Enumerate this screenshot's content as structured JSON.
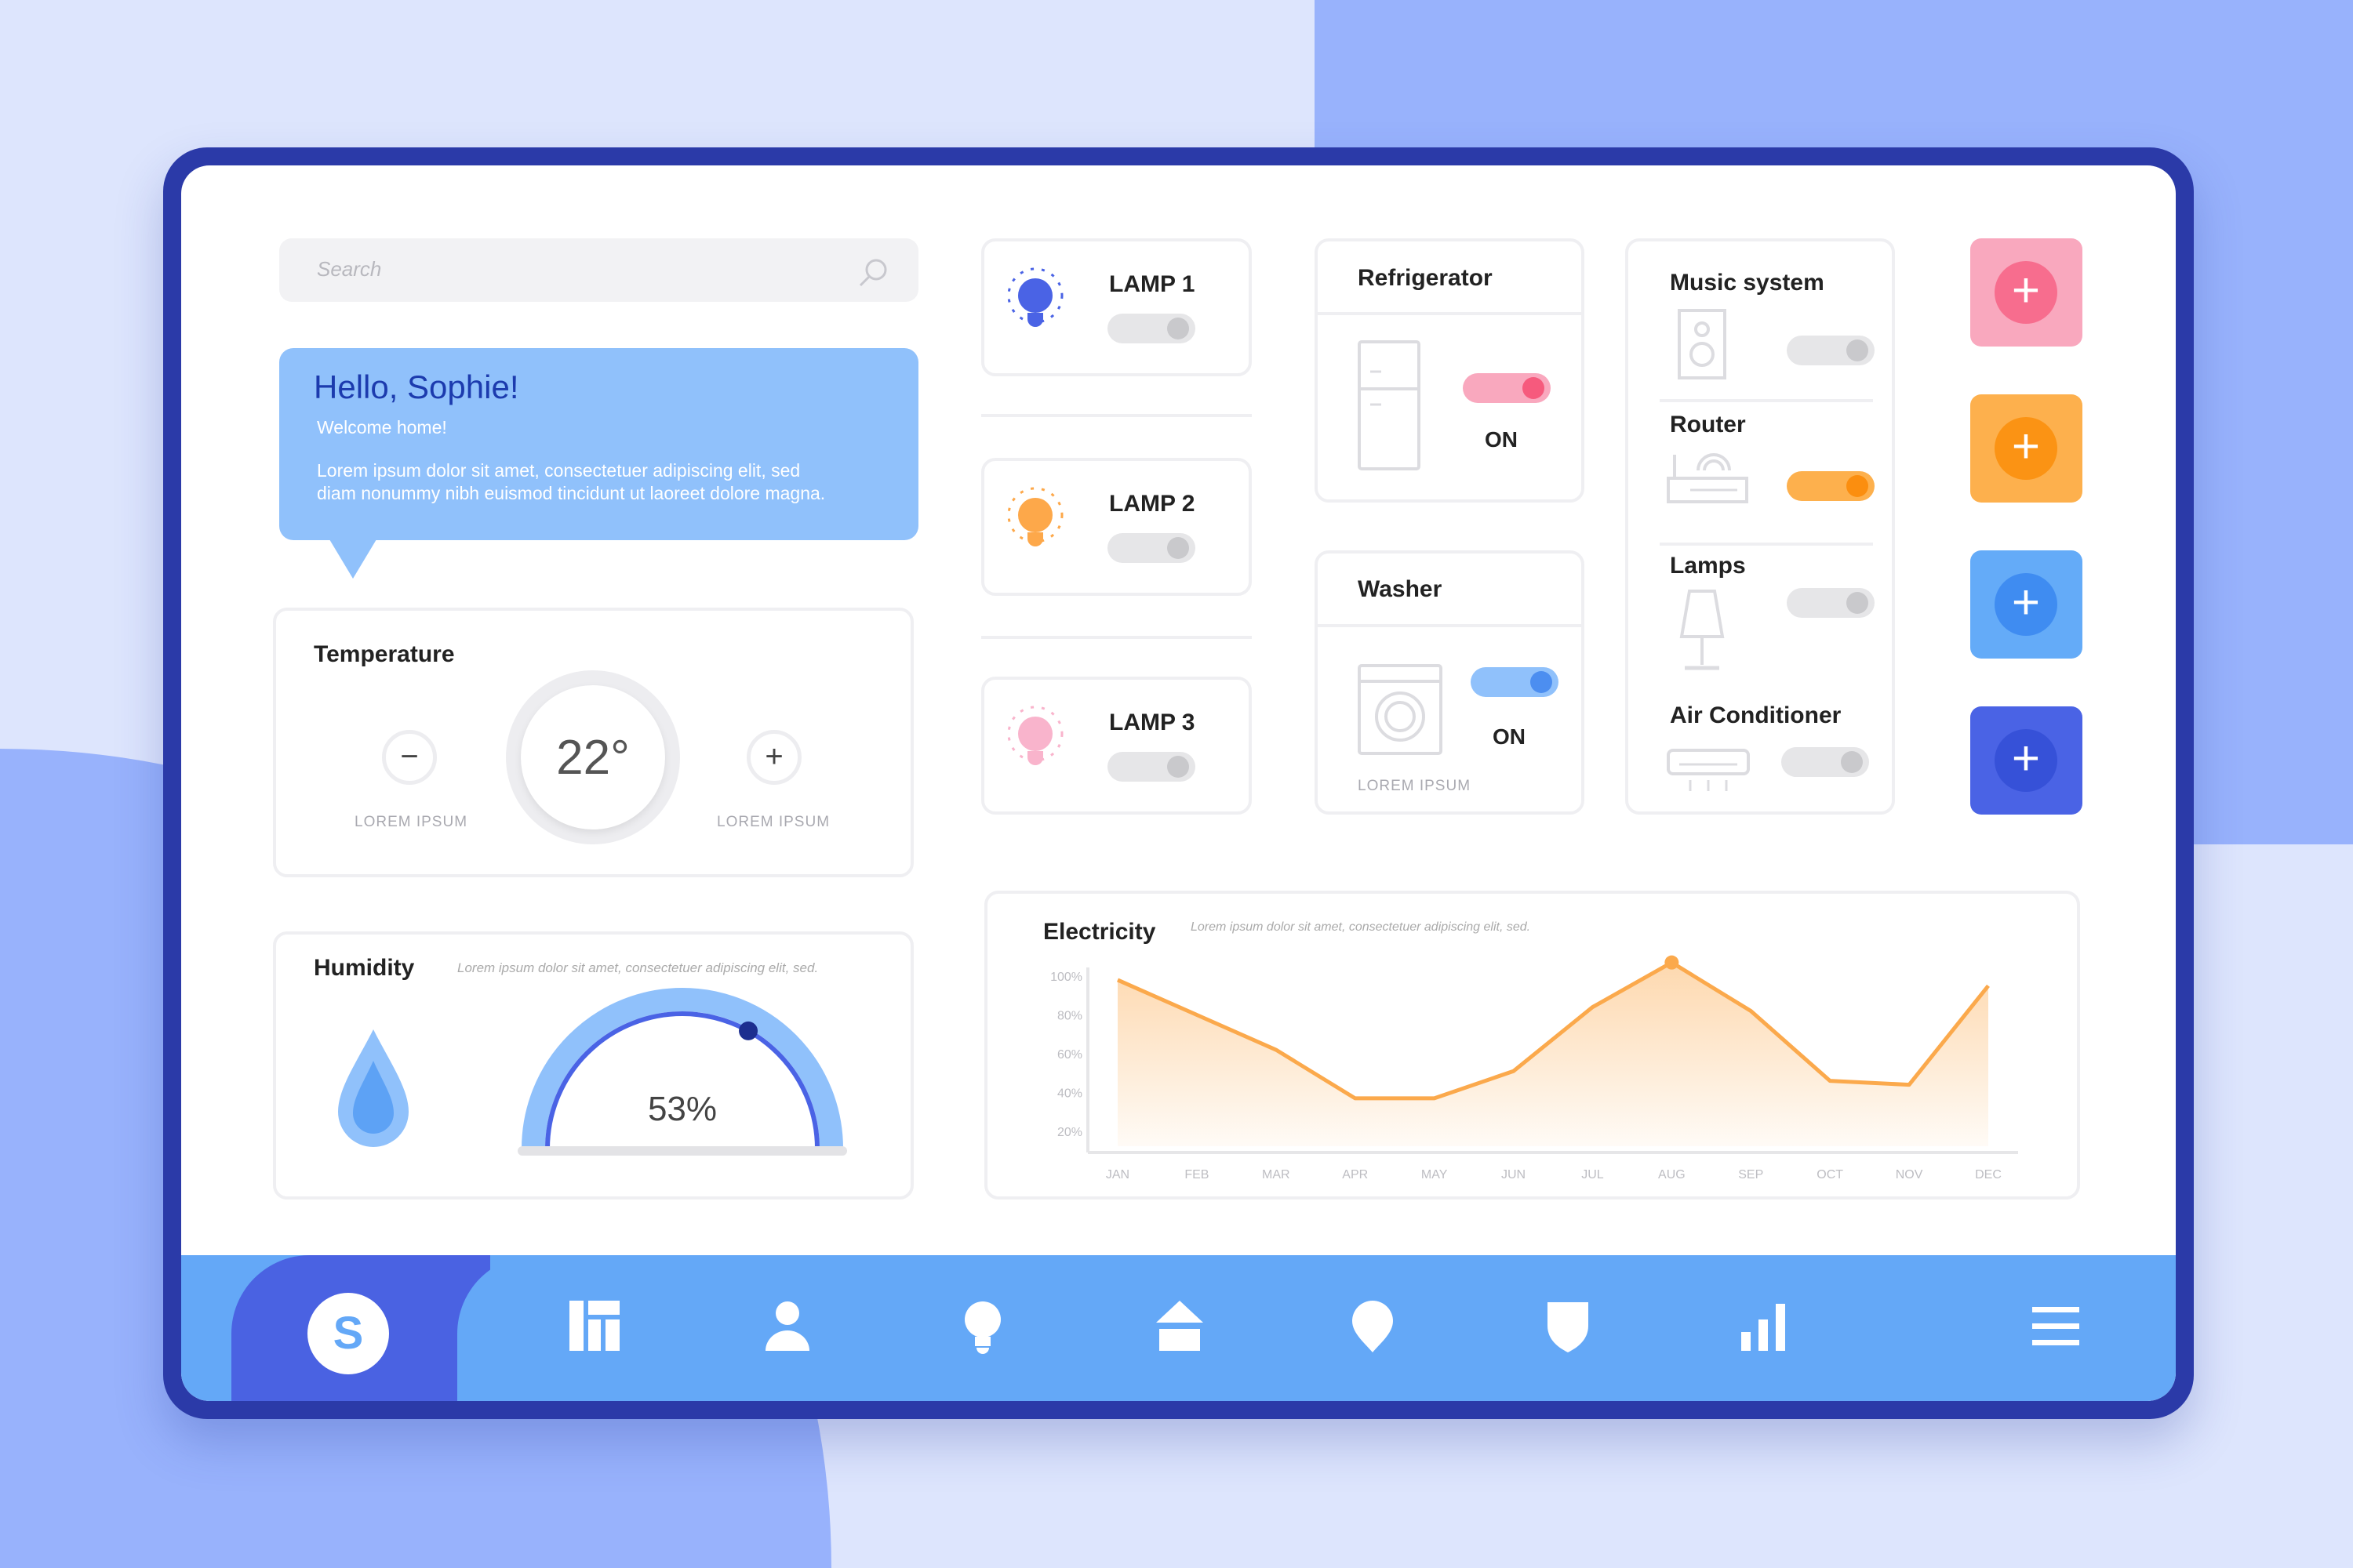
{
  "search": {
    "placeholder": "Search",
    "icon": "search-icon"
  },
  "greeting": {
    "title": "Hello, Sophie!",
    "subtitle": "Welcome home!",
    "body_line1": "Lorem ipsum dolor sit amet, consectetuer adipiscing elit, sed",
    "body_line2": "diam nonummy nibh euismod tincidunt ut laoreet dolore magna.",
    "color": "#90C1FB"
  },
  "temperature": {
    "title": "Temperature",
    "value": "22°",
    "minus_label": "LOREM IPSUM",
    "plus_label": "LOREM IPSUM"
  },
  "humidity": {
    "title": "Humidity",
    "description": "Lorem ipsum dolor sit amet, consectetuer adipiscing elit, sed.",
    "value": "53%",
    "level": 0.53
  },
  "lamps": [
    {
      "label": "LAMP 1",
      "on": false,
      "color": "#4A63E5"
    },
    {
      "label": "LAMP 2",
      "on": false,
      "color": "#FDA84A"
    },
    {
      "label": "LAMP 3",
      "on": false,
      "color": "#F9B4CC"
    }
  ],
  "refrigerator": {
    "title": "Refrigerator",
    "state": "ON",
    "on": true
  },
  "washer": {
    "title": "Washer",
    "state": "ON",
    "on": true,
    "caption": "LOREM IPSUM"
  },
  "devices": [
    {
      "label": "Music system",
      "on": false
    },
    {
      "label": "Router",
      "on": true
    },
    {
      "label": "Lamps",
      "on": false
    },
    {
      "label": "Air Conditioner",
      "on": false
    }
  ],
  "add_buttons": [
    {
      "color": "#F9A8BE",
      "accent": "#F76D8E"
    },
    {
      "color": "#FDB04D",
      "accent": "#FB9314"
    },
    {
      "color": "#64ABF8",
      "accent": "#3F8CF1"
    },
    {
      "color": "#4A63E5",
      "accent": "#3651D8"
    }
  ],
  "electricity": {
    "title": "Electricity",
    "description": "Lorem ipsum dolor sit amet, consectetuer adipiscing elit, sed."
  },
  "chart_data": {
    "type": "area",
    "categories": [
      "JAN",
      "FEB",
      "MAR",
      "APR",
      "MAY",
      "JUN",
      "JUL",
      "AUG",
      "SEP",
      "OCT",
      "NOV",
      "DEC"
    ],
    "values": [
      98,
      80,
      62,
      37,
      37,
      51,
      84,
      107,
      82,
      46,
      44,
      95
    ],
    "yticks": [
      "100%",
      "80%",
      "60%",
      "40%",
      "20%"
    ],
    "ytick_values": [
      100,
      80,
      60,
      40,
      20
    ],
    "ylim": [
      20,
      100
    ],
    "highlight": "AUG",
    "color": "#FBA94C"
  },
  "nav": {
    "avatar_letter": "S",
    "items": [
      "dashboard-icon",
      "user-icon",
      "bulb-icon",
      "home-icon",
      "location-icon",
      "shield-icon",
      "bar-chart-icon",
      "menu-icon"
    ]
  }
}
